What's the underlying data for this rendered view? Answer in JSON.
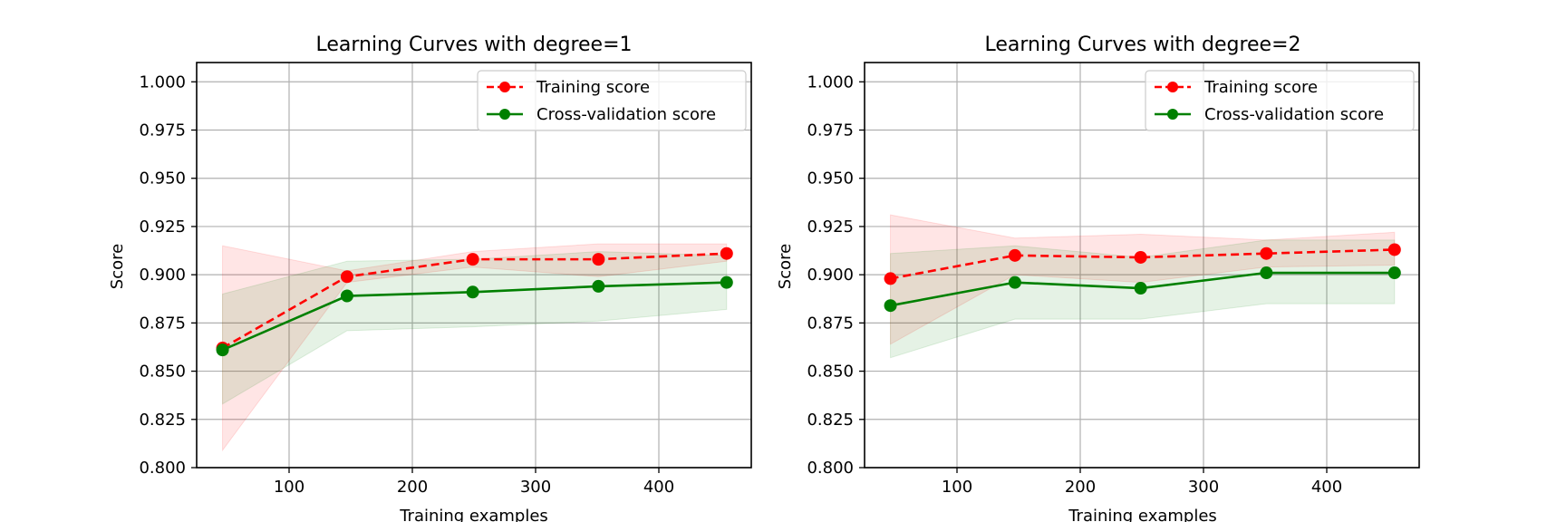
{
  "chart_data": [
    {
      "type": "line",
      "title": "Learning Curves with degree=1",
      "xlabel": "Training examples",
      "ylabel": "Score",
      "xlim": [
        25,
        475
      ],
      "ylim": [
        0.8,
        1.01
      ],
      "xticks": [
        100,
        200,
        300,
        400
      ],
      "yticks": [
        0.8,
        0.825,
        0.85,
        0.875,
        0.9,
        0.925,
        0.95,
        0.975,
        1.0
      ],
      "ytick_labels": [
        "0.800",
        "0.825",
        "0.850",
        "0.875",
        "0.900",
        "0.925",
        "0.950",
        "0.975",
        "1.000"
      ],
      "xtick_labels": [
        "100",
        "200",
        "300",
        "400"
      ],
      "grid": true,
      "legend": "top-right",
      "x": [
        46,
        147,
        249,
        351,
        455
      ],
      "series": [
        {
          "name": "Training score",
          "color": "#ff0000",
          "linestyle": "dashed",
          "marker": "o",
          "values": [
            0.862,
            0.899,
            0.908,
            0.908,
            0.911
          ],
          "band_lower": [
            0.809,
            0.896,
            0.904,
            0.899,
            0.907
          ],
          "band_upper": [
            0.915,
            0.902,
            0.912,
            0.916,
            0.916
          ]
        },
        {
          "name": "Cross-validation score",
          "color": "#008000",
          "linestyle": "solid",
          "marker": "o",
          "values": [
            0.861,
            0.889,
            0.891,
            0.894,
            0.896
          ],
          "band_lower": [
            0.833,
            0.871,
            0.873,
            0.876,
            0.882
          ],
          "band_upper": [
            0.89,
            0.907,
            0.908,
            0.912,
            0.91
          ]
        }
      ]
    },
    {
      "type": "line",
      "title": "Learning Curves with degree=2",
      "xlabel": "Training examples",
      "ylabel": "Score",
      "xlim": [
        25,
        475
      ],
      "ylim": [
        0.8,
        1.01
      ],
      "xticks": [
        100,
        200,
        300,
        400
      ],
      "yticks": [
        0.8,
        0.825,
        0.85,
        0.875,
        0.9,
        0.925,
        0.95,
        0.975,
        1.0
      ],
      "ytick_labels": [
        "0.800",
        "0.825",
        "0.850",
        "0.875",
        "0.900",
        "0.925",
        "0.950",
        "0.975",
        "1.000"
      ],
      "xtick_labels": [
        "100",
        "200",
        "300",
        "400"
      ],
      "grid": true,
      "legend": "top-right",
      "x": [
        46,
        147,
        249,
        351,
        455
      ],
      "series": [
        {
          "name": "Training score",
          "color": "#ff0000",
          "linestyle": "dashed",
          "marker": "o",
          "values": [
            0.898,
            0.91,
            0.909,
            0.911,
            0.913
          ],
          "band_lower": [
            0.864,
            0.9,
            0.896,
            0.904,
            0.905
          ],
          "band_upper": [
            0.931,
            0.919,
            0.921,
            0.918,
            0.922
          ]
        },
        {
          "name": "Cross-validation score",
          "color": "#008000",
          "linestyle": "solid",
          "marker": "o",
          "values": [
            0.884,
            0.896,
            0.893,
            0.901,
            0.901
          ],
          "band_lower": [
            0.857,
            0.877,
            0.877,
            0.885,
            0.885
          ],
          "band_upper": [
            0.911,
            0.915,
            0.909,
            0.918,
            0.918
          ]
        }
      ]
    }
  ]
}
